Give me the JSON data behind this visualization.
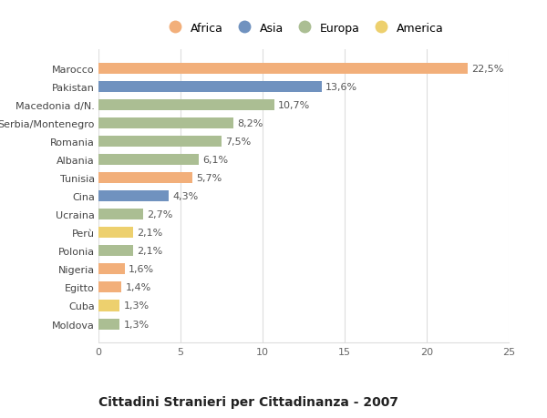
{
  "countries": [
    "Marocco",
    "Pakistan",
    "Macedonia d/N.",
    "Serbia/Montenegro",
    "Romania",
    "Albania",
    "Tunisia",
    "Cina",
    "Ucraina",
    "Perù",
    "Polonia",
    "Nigeria",
    "Egitto",
    "Cuba",
    "Moldova"
  ],
  "values": [
    22.5,
    13.6,
    10.7,
    8.2,
    7.5,
    6.1,
    5.7,
    4.3,
    2.7,
    2.1,
    2.1,
    1.6,
    1.4,
    1.3,
    1.3
  ],
  "labels": [
    "22,5%",
    "13,6%",
    "10,7%",
    "8,2%",
    "7,5%",
    "6,1%",
    "5,7%",
    "4,3%",
    "2,7%",
    "2,1%",
    "2,1%",
    "1,6%",
    "1,4%",
    "1,3%",
    "1,3%"
  ],
  "continents": [
    "Africa",
    "Asia",
    "Europa",
    "Europa",
    "Europa",
    "Europa",
    "Africa",
    "Asia",
    "Europa",
    "America",
    "Europa",
    "Africa",
    "Africa",
    "America",
    "Europa"
  ],
  "continent_colors": {
    "Africa": "#F2AF7A",
    "Asia": "#7092BF",
    "Europa": "#ABBE93",
    "America": "#EDD06E"
  },
  "legend_order": [
    "Africa",
    "Asia",
    "Europa",
    "America"
  ],
  "title": "Cittadini Stranieri per Cittadinanza - 2007",
  "xlim": [
    0,
    25
  ],
  "xticks": [
    0,
    5,
    10,
    15,
    20,
    25
  ],
  "bg_color": "#ffffff",
  "grid_color": "#dddddd",
  "bar_height": 0.6,
  "label_fontsize": 8,
  "ytick_fontsize": 8,
  "xtick_fontsize": 8,
  "title_fontsize": 10,
  "subtitle_fontsize": 7.5
}
